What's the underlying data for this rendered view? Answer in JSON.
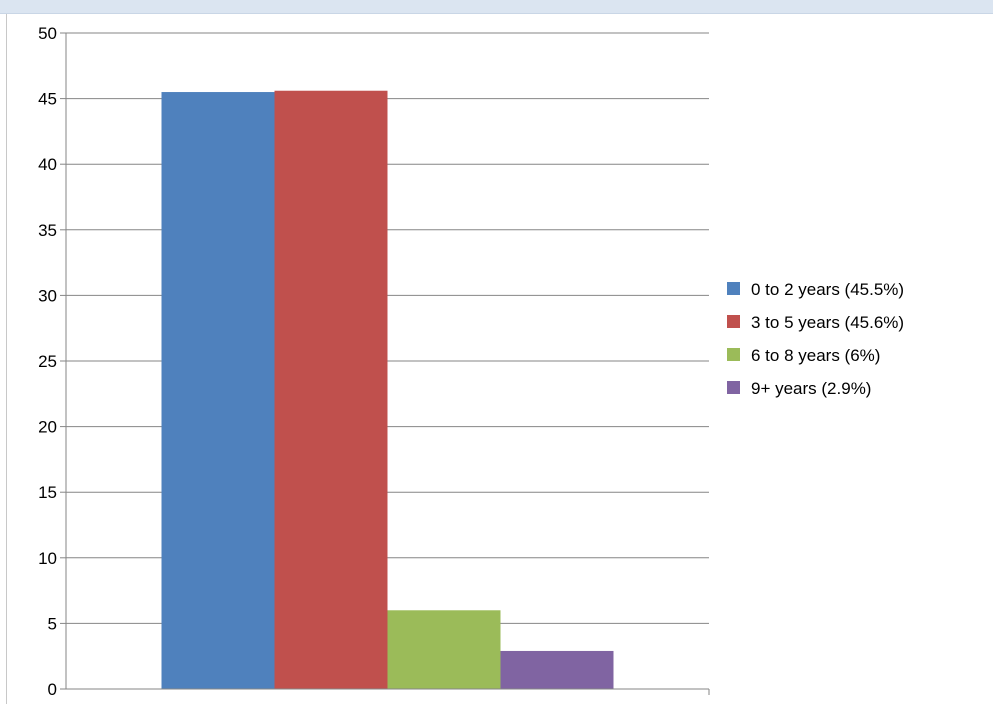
{
  "chart_data": {
    "type": "bar",
    "title": "",
    "xlabel": "",
    "ylabel": "",
    "ylim": [
      0,
      50
    ],
    "ytick_step": 5,
    "grid": "horizontal",
    "legend_placement": "right",
    "series": [
      {
        "name": "0 to 2 years (45.5%)",
        "value": 45.5,
        "color": "#4f81bd"
      },
      {
        "name": "3 to 5 years (45.6%)",
        "value": 45.6,
        "color": "#c0504d"
      },
      {
        "name": "6 to 8 years (6%)",
        "value": 6,
        "color": "#9bbb59"
      },
      {
        "name": "9+ years (2.9%)",
        "value": 2.9,
        "color": "#8064a2"
      }
    ]
  }
}
